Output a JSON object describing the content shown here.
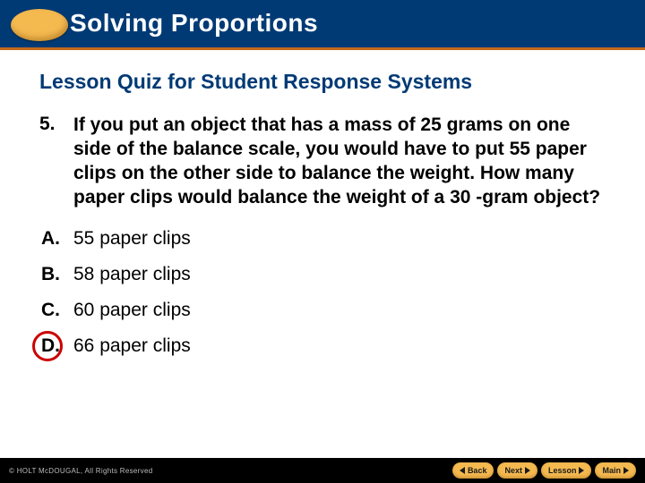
{
  "header": {
    "title": "Solving Proportions",
    "bar_color": "#003a75",
    "accent_color": "#c26a1a",
    "oval_color": "#f4b94f"
  },
  "lesson_title": "Lesson Quiz for Student Response Systems",
  "question": {
    "number": "5.",
    "text": "If you put an object that has a mass of 25 grams on one side of the balance scale, you would have to put 55 paper clips on the other side to balance the weight. How many paper clips would balance the weight of a 30 -gram object?"
  },
  "answers": [
    {
      "label": "A.",
      "text": "55 paper clips",
      "correct": false
    },
    {
      "label": "B.",
      "text": "58 paper clips",
      "correct": false
    },
    {
      "label": "C.",
      "text": "60 paper clips",
      "correct": false
    },
    {
      "label": "D.",
      "text": "66 paper clips",
      "correct": true
    }
  ],
  "correct_ring_color": "#cc0000",
  "footer": {
    "copyright": "© HOLT McDOUGAL, All Rights Reserved",
    "buttons": {
      "back": "Back",
      "next": "Next",
      "lesson": "Lesson",
      "main": "Main"
    },
    "button_color": "#f4b94f"
  }
}
